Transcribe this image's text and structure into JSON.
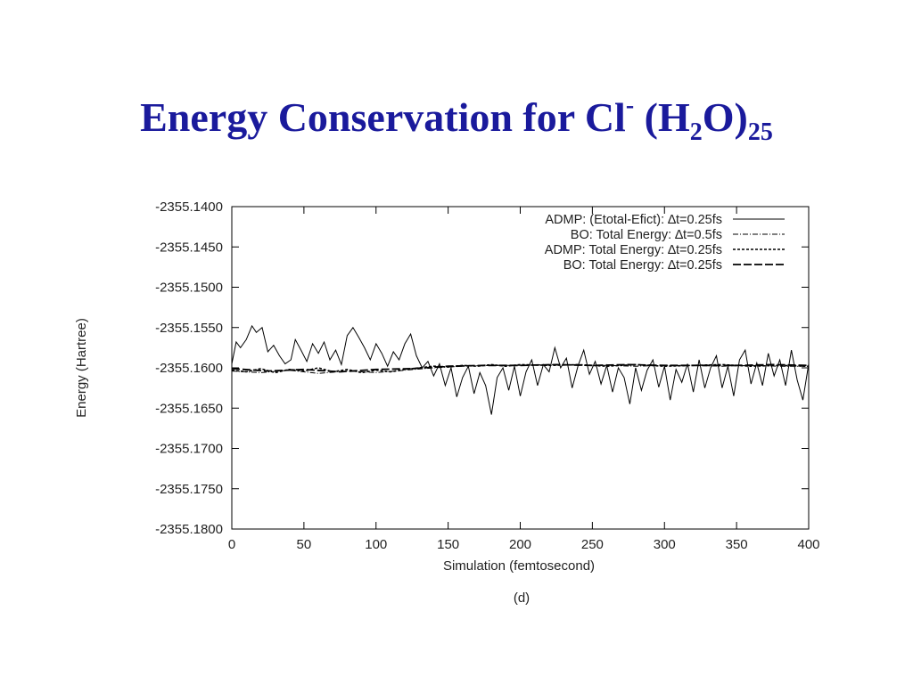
{
  "slide": {
    "title_main": "Energy Conservation for Cl",
    "title_charge": "-",
    "title_open": " (H",
    "title_sub_2": "2",
    "title_close": "O)",
    "title_sub_25": "25"
  },
  "chart_data": {
    "type": "line",
    "title": "",
    "xlabel": "Simulation (femtosecond)",
    "ylabel": "Energy (Hartree)",
    "caption": "(d)",
    "xlim": [
      0,
      400
    ],
    "ylim": [
      -2355.18,
      -2355.14
    ],
    "x_ticks": [
      0,
      50,
      100,
      150,
      200,
      250,
      300,
      350,
      400
    ],
    "x_tick_labels": [
      "0",
      "50",
      "100",
      "150",
      "200",
      "250",
      "300",
      "350",
      "400"
    ],
    "y_ticks": [
      -2355.14,
      -2355.145,
      -2355.15,
      -2355.155,
      -2355.16,
      -2355.165,
      -2355.17,
      -2355.175,
      -2355.18
    ],
    "y_tick_labels": [
      "-2355.1400",
      "-2355.1450",
      "-2355.1500",
      "-2355.1550",
      "-2355.1600",
      "-2355.1650",
      "-2355.1700",
      "-2355.1750",
      "-2355.1800"
    ],
    "grid": false,
    "legend_position": "top-right",
    "series": [
      {
        "name": "ADMP: (Etotal-Efict): ∆t=0.25fs",
        "style": "solid",
        "color": "#000000",
        "points": [
          [
            0,
            -2355.1595
          ],
          [
            3,
            -2355.1568
          ],
          [
            6,
            -2355.1575
          ],
          [
            10,
            -2355.1565
          ],
          [
            14,
            -2355.1548
          ],
          [
            17,
            -2355.1556
          ],
          [
            21,
            -2355.155
          ],
          [
            25,
            -2355.158
          ],
          [
            29,
            -2355.1572
          ],
          [
            33,
            -2355.1585
          ],
          [
            37,
            -2355.1595
          ],
          [
            41,
            -2355.159
          ],
          [
            44,
            -2355.1565
          ],
          [
            48,
            -2355.1578
          ],
          [
            52,
            -2355.1592
          ],
          [
            56,
            -2355.157
          ],
          [
            60,
            -2355.1582
          ],
          [
            64,
            -2355.1568
          ],
          [
            68,
            -2355.159
          ],
          [
            72,
            -2355.1578
          ],
          [
            76,
            -2355.1596
          ],
          [
            80,
            -2355.156
          ],
          [
            84,
            -2355.155
          ],
          [
            88,
            -2355.1562
          ],
          [
            92,
            -2355.1575
          ],
          [
            96,
            -2355.159
          ],
          [
            100,
            -2355.157
          ],
          [
            104,
            -2355.1582
          ],
          [
            108,
            -2355.1598
          ],
          [
            112,
            -2355.158
          ],
          [
            116,
            -2355.159
          ],
          [
            120,
            -2355.157
          ],
          [
            124,
            -2355.1558
          ],
          [
            128,
            -2355.1585
          ],
          [
            132,
            -2355.16
          ],
          [
            136,
            -2355.1592
          ],
          [
            140,
            -2355.161
          ],
          [
            144,
            -2355.1595
          ],
          [
            148,
            -2355.1622
          ],
          [
            152,
            -2355.16
          ],
          [
            156,
            -2355.1636
          ],
          [
            160,
            -2355.1612
          ],
          [
            164,
            -2355.1598
          ],
          [
            168,
            -2355.1632
          ],
          [
            172,
            -2355.1606
          ],
          [
            176,
            -2355.1622
          ],
          [
            180,
            -2355.1658
          ],
          [
            184,
            -2355.1612
          ],
          [
            188,
            -2355.16
          ],
          [
            192,
            -2355.1628
          ],
          [
            196,
            -2355.1598
          ],
          [
            200,
            -2355.1635
          ],
          [
            204,
            -2355.1605
          ],
          [
            208,
            -2355.159
          ],
          [
            212,
            -2355.1622
          ],
          [
            216,
            -2355.1596
          ],
          [
            220,
            -2355.1605
          ],
          [
            224,
            -2355.1575
          ],
          [
            228,
            -2355.16
          ],
          [
            232,
            -2355.1588
          ],
          [
            236,
            -2355.1625
          ],
          [
            240,
            -2355.1598
          ],
          [
            244,
            -2355.1578
          ],
          [
            248,
            -2355.1608
          ],
          [
            252,
            -2355.1592
          ],
          [
            256,
            -2355.162
          ],
          [
            260,
            -2355.1597
          ],
          [
            264,
            -2355.163
          ],
          [
            268,
            -2355.16
          ],
          [
            272,
            -2355.1612
          ],
          [
            276,
            -2355.1645
          ],
          [
            280,
            -2355.16
          ],
          [
            284,
            -2355.1628
          ],
          [
            288,
            -2355.1603
          ],
          [
            292,
            -2355.159
          ],
          [
            296,
            -2355.1624
          ],
          [
            300,
            -2355.1598
          ],
          [
            304,
            -2355.164
          ],
          [
            308,
            -2355.1602
          ],
          [
            312,
            -2355.1618
          ],
          [
            316,
            -2355.1595
          ],
          [
            320,
            -2355.163
          ],
          [
            324,
            -2355.159
          ],
          [
            328,
            -2355.1625
          ],
          [
            332,
            -2355.16
          ],
          [
            336,
            -2355.1585
          ],
          [
            340,
            -2355.1625
          ],
          [
            344,
            -2355.1598
          ],
          [
            348,
            -2355.1635
          ],
          [
            352,
            -2355.159
          ],
          [
            356,
            -2355.1578
          ],
          [
            360,
            -2355.162
          ],
          [
            364,
            -2355.1594
          ],
          [
            368,
            -2355.1622
          ],
          [
            372,
            -2355.1582
          ],
          [
            376,
            -2355.161
          ],
          [
            380,
            -2355.159
          ],
          [
            384,
            -2355.1622
          ],
          [
            388,
            -2355.1578
          ],
          [
            392,
            -2355.1615
          ],
          [
            396,
            -2355.164
          ],
          [
            400,
            -2355.1595
          ]
        ]
      },
      {
        "name": "BO: Total Energy: ∆t=0.5fs",
        "style": "dashdot",
        "color": "#000000",
        "points": [
          [
            0,
            -2355.1604
          ],
          [
            20,
            -2355.1606
          ],
          [
            40,
            -2355.1603
          ],
          [
            60,
            -2355.1607
          ],
          [
            80,
            -2355.1604
          ],
          [
            100,
            -2355.1606
          ],
          [
            120,
            -2355.1603
          ],
          [
            140,
            -2355.16
          ],
          [
            160,
            -2355.1598
          ],
          [
            180,
            -2355.1597
          ],
          [
            200,
            -2355.1597
          ],
          [
            220,
            -2355.1596
          ],
          [
            240,
            -2355.1597
          ],
          [
            260,
            -2355.1597
          ],
          [
            280,
            -2355.1598
          ],
          [
            300,
            -2355.1597
          ],
          [
            320,
            -2355.1597
          ],
          [
            340,
            -2355.1598
          ],
          [
            360,
            -2355.1597
          ],
          [
            380,
            -2355.1598
          ],
          [
            400,
            -2355.1598
          ]
        ]
      },
      {
        "name": "ADMP: Total Energy: ∆t=0.25fs",
        "style": "dotted",
        "color": "#000000",
        "points": [
          [
            0,
            -2355.1603
          ],
          [
            10,
            -2355.1605
          ],
          [
            20,
            -2355.1601
          ],
          [
            30,
            -2355.1606
          ],
          [
            40,
            -2355.1602
          ],
          [
            50,
            -2355.1604
          ],
          [
            60,
            -2355.16
          ],
          [
            70,
            -2355.1605
          ],
          [
            80,
            -2355.1602
          ],
          [
            90,
            -2355.1606
          ],
          [
            100,
            -2355.1603
          ],
          [
            110,
            -2355.1605
          ],
          [
            120,
            -2355.1602
          ],
          [
            130,
            -2355.16
          ],
          [
            140,
            -2355.1598
          ],
          [
            150,
            -2355.1599
          ],
          [
            160,
            -2355.1597
          ],
          [
            170,
            -2355.1598
          ],
          [
            180,
            -2355.1596
          ],
          [
            190,
            -2355.1598
          ],
          [
            200,
            -2355.1596
          ],
          [
            220,
            -2355.1597
          ],
          [
            240,
            -2355.1596
          ],
          [
            260,
            -2355.1598
          ],
          [
            280,
            -2355.1596
          ],
          [
            300,
            -2355.1598
          ],
          [
            320,
            -2355.1597
          ],
          [
            340,
            -2355.1596
          ],
          [
            360,
            -2355.1598
          ],
          [
            380,
            -2355.1597
          ],
          [
            400,
            -2355.1598
          ]
        ]
      },
      {
        "name": "BO: Total Energy: ∆t=0.25fs",
        "style": "dashed",
        "color": "#000000",
        "points": [
          [
            0,
            -2355.1601
          ],
          [
            25,
            -2355.1604
          ],
          [
            50,
            -2355.1602
          ],
          [
            75,
            -2355.1605
          ],
          [
            100,
            -2355.1602
          ],
          [
            125,
            -2355.1601
          ],
          [
            150,
            -2355.1598
          ],
          [
            175,
            -2355.1597
          ],
          [
            200,
            -2355.1597
          ],
          [
            225,
            -2355.1596
          ],
          [
            250,
            -2355.1597
          ],
          [
            275,
            -2355.1596
          ],
          [
            300,
            -2355.1597
          ],
          [
            325,
            -2355.1597
          ],
          [
            350,
            -2355.1597
          ],
          [
            375,
            -2355.1596
          ],
          [
            400,
            -2355.1597
          ]
        ]
      }
    ]
  }
}
